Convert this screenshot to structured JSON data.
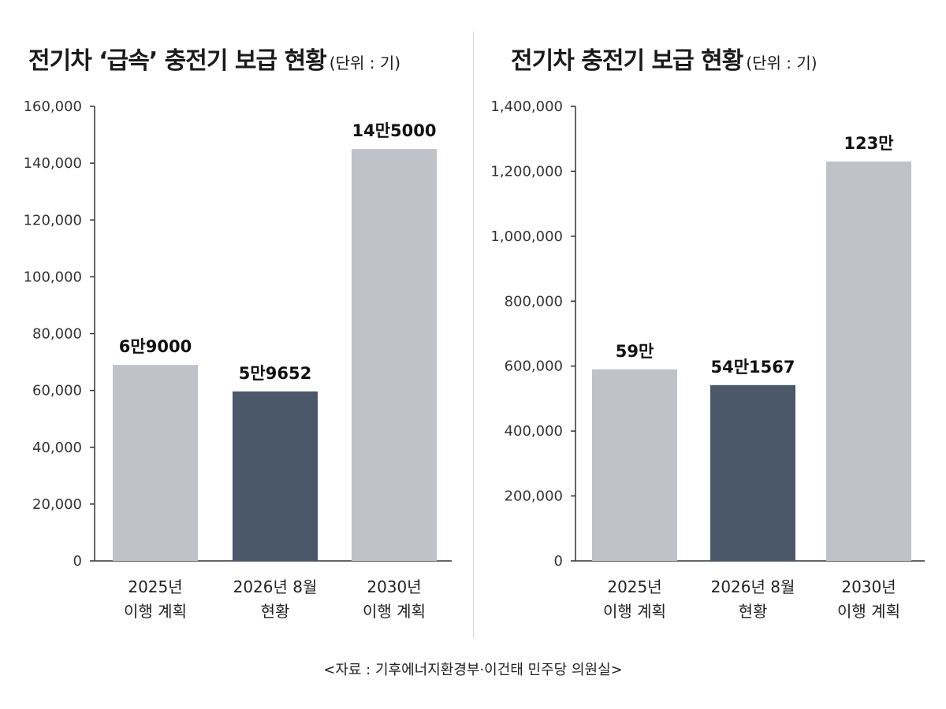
{
  "charts": [
    {
      "title": "전기차 ‘급속’ 충전기 보급 현황",
      "unit_label": "(단위 : 기)"
    },
    {
      "title": "전기차 충전기 보급 현황",
      "unit_label": "(단위 : 기)"
    }
  ],
  "source": "<자료 : 기후에너지환경부·이건태 민주당 의원실>",
  "colors": {
    "plan_bar": "#bfc3c9",
    "current_bar": "#4a5869",
    "axis": "#333333"
  },
  "chart_data": [
    {
      "type": "bar",
      "title": "전기차 ‘급속’ 충전기 보급 현황",
      "categories": [
        [
          "2025년",
          "이행 계획"
        ],
        [
          "2026년 8월",
          "현황"
        ],
        [
          "2030년",
          "이행 계획"
        ]
      ],
      "values": [
        69000,
        59652,
        145000
      ],
      "data_labels": [
        "6만9000",
        "5만9652",
        "14만5000"
      ],
      "bar_colors": [
        "#bfc3c9",
        "#4a5869",
        "#bfc3c9"
      ],
      "ylim": [
        0,
        160000
      ],
      "yticks": [
        0,
        20000,
        40000,
        60000,
        80000,
        100000,
        120000,
        140000,
        160000
      ],
      "ytick_labels": [
        "0",
        "20,000",
        "40,000",
        "60,000",
        "80,000",
        "100,000",
        "120,000",
        "140,000",
        "160,000"
      ],
      "grid": false
    },
    {
      "type": "bar",
      "title": "전기차 충전기 보급 현황",
      "categories": [
        [
          "2025년",
          "이행 계획"
        ],
        [
          "2026년 8월",
          "현황"
        ],
        [
          "2030년",
          "이행 계획"
        ]
      ],
      "values": [
        590000,
        541567,
        1230000
      ],
      "data_labels": [
        "59만",
        "54만1567",
        "123만"
      ],
      "bar_colors": [
        "#bfc3c9",
        "#4a5869",
        "#bfc3c9"
      ],
      "ylim": [
        0,
        1400000
      ],
      "yticks": [
        0,
        200000,
        400000,
        600000,
        800000,
        1000000,
        1200000,
        1400000
      ],
      "ytick_labels": [
        "0",
        "200,000",
        "400,000",
        "600,000",
        "800,000",
        "1,000,000",
        "1,200,000",
        "1,400,000"
      ],
      "grid": false
    }
  ]
}
